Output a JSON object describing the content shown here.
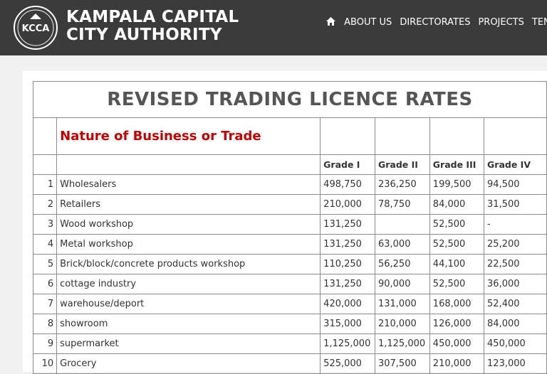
{
  "header": {
    "logo": "KCCA",
    "title_line1": "KAMPALA CAPITAL",
    "title_line2": "CITY AUTHORITY",
    "nav": [
      "ABOUT US",
      "DIRECTORATES",
      "PROJECTS",
      "TENDERS"
    ]
  },
  "table": {
    "title": "REVISED TRADING LICENCE RATES",
    "subtitle": "Nature of Business or Trade",
    "columns": [
      "Grade I",
      "Grade II",
      "Grade III",
      "Grade IV"
    ],
    "rows": [
      [
        "1",
        "Wholesalers",
        "498,750",
        "236,250",
        "199,500",
        "94,500"
      ],
      [
        "2",
        "Retailers",
        "210,000",
        "78,750",
        "84,000",
        "31,500"
      ],
      [
        "3",
        "Wood workshop",
        "131,250",
        null,
        "52,500",
        "-"
      ],
      [
        "4",
        "Metal workshop",
        "131,250",
        "63,000",
        "52,500",
        "25,200"
      ],
      [
        "5",
        "Brick/block/concrete products workshop",
        "110,250",
        "56,250",
        "44,100",
        "22,500"
      ],
      [
        "6",
        "cottage industry",
        "131,250",
        "90,000",
        "52,500",
        "36,000"
      ],
      [
        "7",
        "warehouse/deport",
        "420,000",
        "131,000",
        "168,000",
        "52,400"
      ],
      [
        "8",
        "showroom",
        "315,000",
        "210,000",
        "126,000",
        "84,000"
      ],
      [
        "9",
        "supermarket",
        "1,125,000",
        "1,125,000",
        "450,000",
        "450,000"
      ],
      [
        "10",
        "Grocery",
        "525,000",
        "307,500",
        "210,000",
        "123,000"
      ]
    ]
  }
}
